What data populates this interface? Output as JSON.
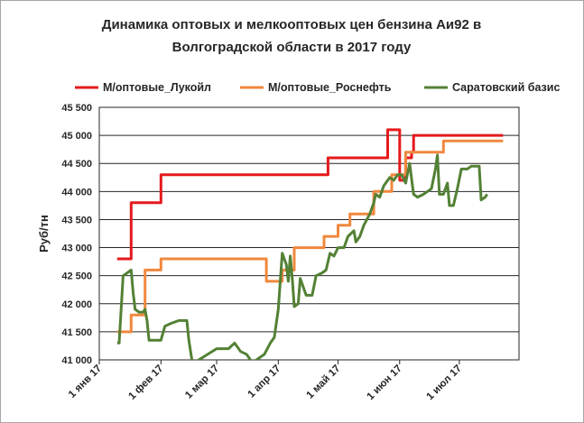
{
  "chart_data": {
    "type": "line",
    "title": [
      "Динамика оптовых и мелкооптовых цен бензина Аи92 в",
      "Волгоградской  области в 2017 году"
    ],
    "ylabel": "Руб/тн",
    "xlabel": "",
    "ylim": [
      41000,
      45500
    ],
    "y_ticks": [
      41000,
      41500,
      42000,
      42500,
      43000,
      43500,
      44000,
      44500,
      45000,
      45500
    ],
    "y_tick_labels": [
      "41 000",
      "41 500",
      "42 000",
      "42 500",
      "43 000",
      "43 500",
      "44 000",
      "44 500",
      "45 000",
      "45 500"
    ],
    "x_range": [
      "2017-01-01",
      "2017-07-31"
    ],
    "x_tick_dates": [
      "2017-01-01",
      "2017-02-01",
      "2017-03-01",
      "2017-04-01",
      "2017-05-01",
      "2017-06-01",
      "2017-07-01"
    ],
    "x_tick_labels": [
      "1 янв 17",
      "1 фев 17",
      "1 мар 17",
      "1 апр 17",
      "1 май 17",
      "1 июн 17",
      "1 июл 17"
    ],
    "grid": "horizontal",
    "legend_position": "top",
    "series": [
      {
        "name": "М/оптовые_Лукойл",
        "color": "#e41a1c",
        "step": true,
        "points": [
          [
            "2017-01-10",
            42800
          ],
          [
            "2017-01-17",
            43800
          ],
          [
            "2017-02-01",
            44300
          ],
          [
            "2017-04-26",
            44600
          ],
          [
            "2017-05-26",
            45100
          ],
          [
            "2017-06-01",
            44200
          ],
          [
            "2017-06-04",
            44600
          ],
          [
            "2017-06-07",
            44700
          ],
          [
            "2017-06-08",
            45000
          ],
          [
            "2017-07-23",
            45000
          ]
        ]
      },
      {
        "name": "М/оптовые_Роснефть",
        "color": "#f0883e",
        "step": true,
        "points": [
          [
            "2017-01-10",
            41500
          ],
          [
            "2017-01-17",
            41800
          ],
          [
            "2017-01-24",
            42600
          ],
          [
            "2017-02-01",
            42800
          ],
          [
            "2017-03-26",
            42400
          ],
          [
            "2017-04-03",
            42600
          ],
          [
            "2017-04-09",
            43000
          ],
          [
            "2017-04-24",
            43200
          ],
          [
            "2017-05-01",
            43400
          ],
          [
            "2017-05-07",
            43600
          ],
          [
            "2017-05-19",
            44000
          ],
          [
            "2017-05-28",
            44300
          ],
          [
            "2017-06-04",
            44700
          ],
          [
            "2017-06-23",
            44900
          ],
          [
            "2017-07-23",
            44900
          ]
        ]
      },
      {
        "name": "Саратовский базис",
        "color": "#538135",
        "step": false,
        "points": [
          [
            "2017-01-10",
            41300
          ],
          [
            "2017-01-11",
            41300
          ],
          [
            "2017-01-13",
            42500
          ],
          [
            "2017-01-15",
            42550
          ],
          [
            "2017-01-17",
            42600
          ],
          [
            "2017-01-18",
            42200
          ],
          [
            "2017-01-19",
            41900
          ],
          [
            "2017-01-21",
            41850
          ],
          [
            "2017-01-23",
            41850
          ],
          [
            "2017-01-24",
            41900
          ],
          [
            "2017-01-25",
            41700
          ],
          [
            "2017-01-26",
            41350
          ],
          [
            "2017-02-01",
            41350
          ],
          [
            "2017-02-03",
            41600
          ],
          [
            "2017-02-06",
            41650
          ],
          [
            "2017-02-10",
            41700
          ],
          [
            "2017-02-14",
            41700
          ],
          [
            "2017-02-15",
            41350
          ],
          [
            "2017-02-17",
            40900
          ],
          [
            "2017-02-20",
            41000
          ],
          [
            "2017-03-01",
            41200
          ],
          [
            "2017-03-07",
            41200
          ],
          [
            "2017-03-10",
            41300
          ],
          [
            "2017-03-13",
            41150
          ],
          [
            "2017-03-16",
            41100
          ],
          [
            "2017-03-19",
            40950
          ],
          [
            "2017-03-25",
            41100
          ],
          [
            "2017-03-28",
            41300
          ],
          [
            "2017-03-30",
            41400
          ],
          [
            "2017-04-01",
            41900
          ],
          [
            "2017-04-03",
            42900
          ],
          [
            "2017-04-05",
            42700
          ],
          [
            "2017-04-06",
            42400
          ],
          [
            "2017-04-07",
            42850
          ],
          [
            "2017-04-08",
            42450
          ],
          [
            "2017-04-09",
            41950
          ],
          [
            "2017-04-11",
            42000
          ],
          [
            "2017-04-12",
            42450
          ],
          [
            "2017-04-15",
            42150
          ],
          [
            "2017-04-18",
            42150
          ],
          [
            "2017-04-20",
            42500
          ],
          [
            "2017-04-23",
            42550
          ],
          [
            "2017-04-25",
            42600
          ],
          [
            "2017-04-27",
            42900
          ],
          [
            "2017-04-29",
            42850
          ],
          [
            "2017-05-01",
            43000
          ],
          [
            "2017-05-04",
            43000
          ],
          [
            "2017-05-06",
            43200
          ],
          [
            "2017-05-09",
            43300
          ],
          [
            "2017-05-10",
            43100
          ],
          [
            "2017-05-12",
            43200
          ],
          [
            "2017-05-14",
            43400
          ],
          [
            "2017-05-17",
            43600
          ],
          [
            "2017-05-19",
            43800
          ],
          [
            "2017-05-20",
            43950
          ],
          [
            "2017-05-22",
            43900
          ],
          [
            "2017-05-24",
            44100
          ],
          [
            "2017-05-27",
            44250
          ],
          [
            "2017-05-29",
            44200
          ],
          [
            "2017-05-31",
            44300
          ],
          [
            "2017-06-02",
            44300
          ],
          [
            "2017-06-04",
            44150
          ],
          [
            "2017-06-06",
            44500
          ],
          [
            "2017-06-08",
            43950
          ],
          [
            "2017-06-10",
            43900
          ],
          [
            "2017-06-13",
            43950
          ],
          [
            "2017-06-15",
            44000
          ],
          [
            "2017-06-17",
            44050
          ],
          [
            "2017-06-19",
            44400
          ],
          [
            "2017-06-20",
            44650
          ],
          [
            "2017-06-21",
            43950
          ],
          [
            "2017-06-23",
            43950
          ],
          [
            "2017-06-25",
            44150
          ],
          [
            "2017-06-26",
            43750
          ],
          [
            "2017-06-28",
            43750
          ],
          [
            "2017-06-30",
            44050
          ],
          [
            "2017-07-02",
            44400
          ],
          [
            "2017-07-05",
            44400
          ],
          [
            "2017-07-07",
            44450
          ],
          [
            "2017-07-11",
            44450
          ],
          [
            "2017-07-12",
            43850
          ],
          [
            "2017-07-14",
            43900
          ],
          [
            "2017-07-15",
            43950
          ]
        ]
      }
    ]
  }
}
